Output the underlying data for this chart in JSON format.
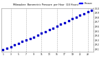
{
  "title": "Milwaukee  Barometric Pressure  per Hour  (24 Hours)",
  "x_values": [
    1,
    2,
    3,
    4,
    5,
    6,
    7,
    8,
    9,
    10,
    11,
    12,
    13,
    14,
    15,
    16,
    17,
    18,
    19,
    20,
    21,
    22,
    23,
    24
  ],
  "y_values": [
    29.1,
    29.13,
    29.16,
    29.2,
    29.23,
    29.27,
    29.3,
    29.34,
    29.37,
    29.41,
    29.45,
    29.49,
    29.53,
    29.57,
    29.61,
    29.65,
    29.69,
    29.73,
    29.77,
    29.81,
    29.85,
    29.88,
    29.92,
    29.96
  ],
  "dot_color": "#0000cc",
  "bg_color": "#ffffff",
  "grid_color": "#aaaaaa",
  "title_color": "#000000",
  "tick_color": "#000000",
  "ylim": [
    29.05,
    30.0
  ],
  "xlim": [
    0.5,
    24.5
  ],
  "yticks": [
    29.1,
    29.2,
    29.3,
    29.4,
    29.5,
    29.6,
    29.7,
    29.8,
    29.9,
    30.0
  ],
  "xticks": [
    1,
    3,
    5,
    7,
    9,
    11,
    13,
    15,
    17,
    19,
    21,
    23
  ],
  "legend_label": "Pressure",
  "legend_color": "#0000ff",
  "grid_xticks": [
    3,
    7,
    11,
    15,
    19,
    23
  ]
}
